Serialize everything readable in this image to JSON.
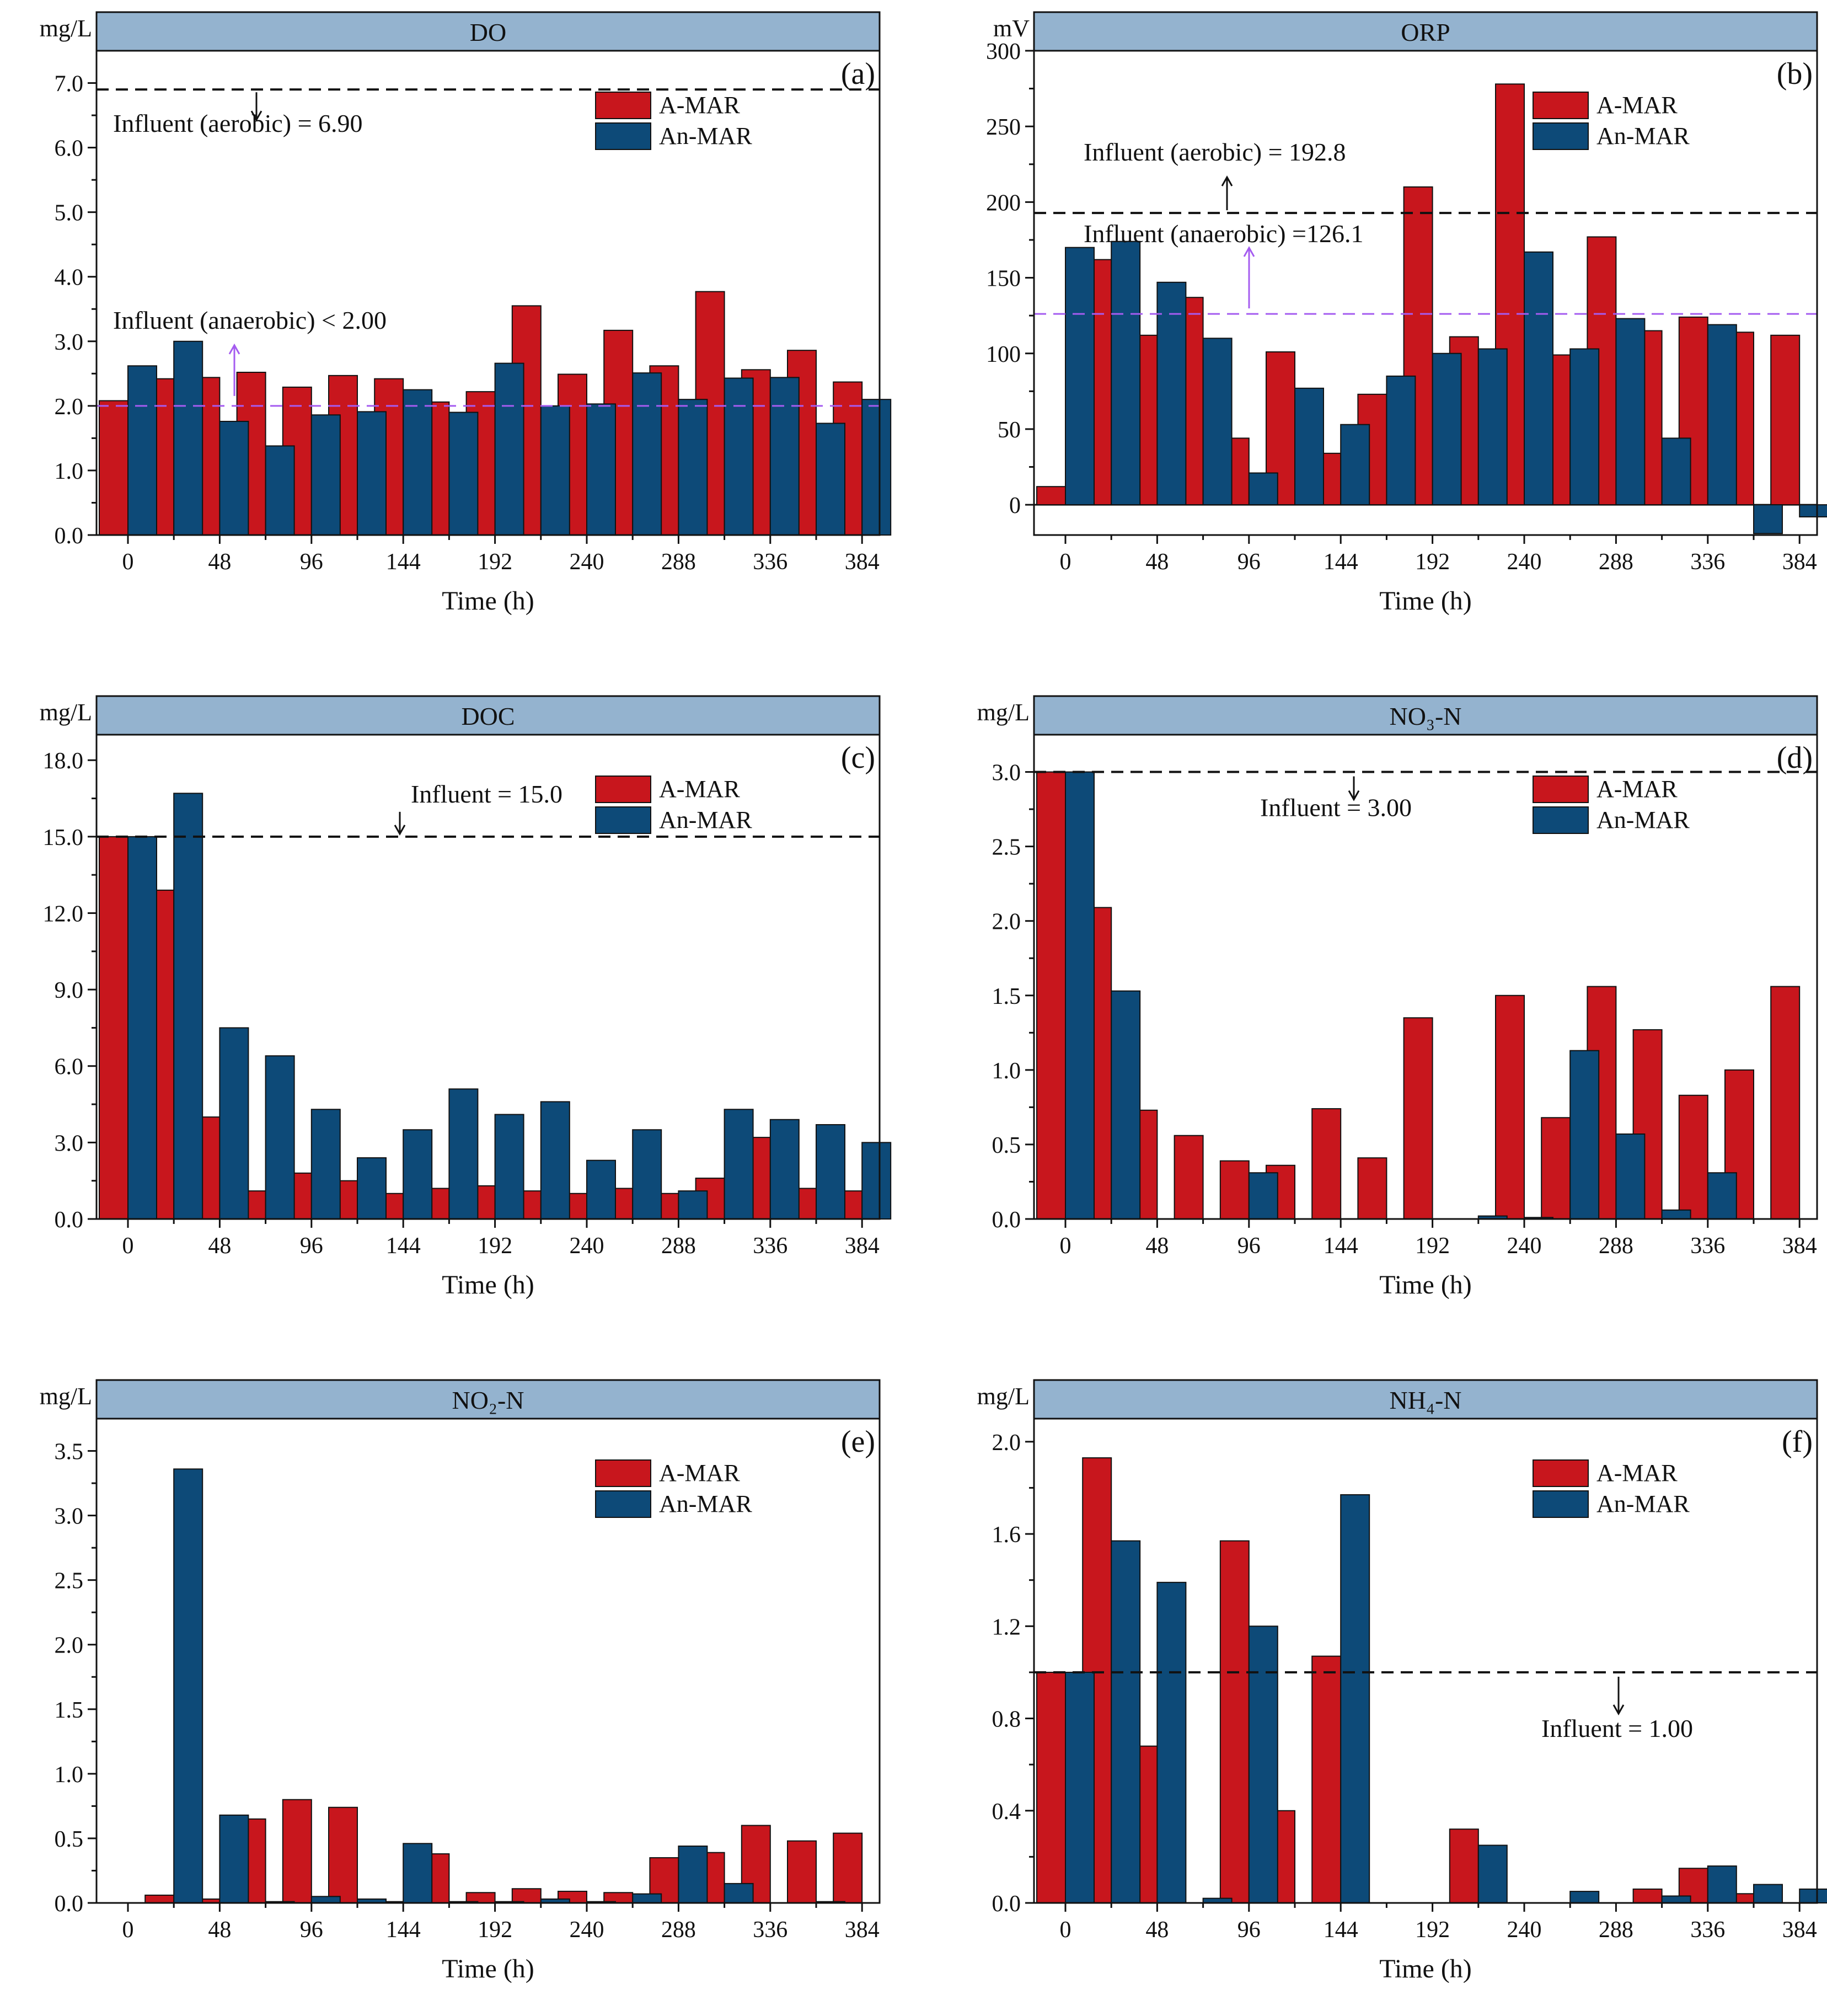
{
  "figure": {
    "time_label": "Time (h)",
    "legend_a": "A-MAR",
    "legend_b": "An-MAR",
    "color_a": "#c8161d",
    "color_b": "#0d4a78",
    "header_fill": "#94b3cf",
    "ref_black": "#111111",
    "ref_purple": "#a55cf0"
  },
  "chart_data": [
    {
      "id": "a",
      "type": "bar",
      "title": "DO",
      "letter": "(a)",
      "unit": "mg/L",
      "xlabel": "Time (h)",
      "x": [
        0,
        24,
        48,
        72,
        96,
        120,
        144,
        168,
        192,
        216,
        240,
        264,
        288,
        312,
        336,
        360,
        384
      ],
      "xticks": [
        "0",
        "48",
        "96",
        "144",
        "192",
        "240",
        "288",
        "336",
        "384"
      ],
      "yticks": [
        "0.0",
        "1.0",
        "2.0",
        "3.0",
        "4.0",
        "5.0",
        "6.0",
        "7.0"
      ],
      "ylim": [
        0,
        7.5
      ],
      "series": [
        {
          "name": "A-MAR",
          "values": [
            2.08,
            2.42,
            2.44,
            2.52,
            2.29,
            2.47,
            2.42,
            2.06,
            2.22,
            3.55,
            2.49,
            3.17,
            2.62,
            3.77,
            2.56,
            2.86,
            2.37
          ]
        },
        {
          "name": "An-MAR",
          "values": [
            2.62,
            3.0,
            1.76,
            1.38,
            1.86,
            1.91,
            2.25,
            1.9,
            2.66,
            2.0,
            2.03,
            2.51,
            2.1,
            2.43,
            2.44,
            1.73,
            2.1
          ]
        }
      ],
      "refs": [
        {
          "value": 6.9,
          "label": "Influent (aerobic) = 6.90",
          "color": "black"
        },
        {
          "value": 2.0,
          "label": "Influent (anaerobic) < 2.00",
          "color": "purple"
        }
      ]
    },
    {
      "id": "b",
      "type": "bar",
      "title": "ORP",
      "letter": "(b)",
      "unit": "mV",
      "xlabel": "Time (h)",
      "x": [
        0,
        24,
        48,
        72,
        96,
        120,
        144,
        168,
        192,
        216,
        240,
        264,
        288,
        312,
        336,
        360,
        384
      ],
      "xticks": [
        "0",
        "48",
        "96",
        "144",
        "192",
        "240",
        "288",
        "336",
        "384"
      ],
      "yticks": [
        "0",
        "50",
        "100",
        "150",
        "200",
        "250",
        "300"
      ],
      "ylim": [
        -20,
        300
      ],
      "series": [
        {
          "name": "A-MAR",
          "values": [
            12,
            162,
            112,
            137,
            44,
            101,
            34,
            73,
            210,
            111,
            278,
            99,
            177,
            115,
            124,
            114,
            112
          ]
        },
        {
          "name": "An-MAR",
          "values": [
            170,
            174,
            147,
            110,
            21,
            77,
            53,
            85,
            100,
            103,
            167,
            103,
            123,
            44,
            119,
            -19,
            -8
          ]
        }
      ],
      "refs": [
        {
          "value": 192.8,
          "label": "Influent (aerobic) = 192.8",
          "color": "black"
        },
        {
          "value": 126.1,
          "label": "Influent (anaerobic) =126.1",
          "color": "purple"
        }
      ]
    },
    {
      "id": "c",
      "type": "bar",
      "title": "DOC",
      "letter": "(c)",
      "unit": "mg/L",
      "xlabel": "Time (h)",
      "x": [
        0,
        24,
        48,
        72,
        96,
        120,
        144,
        168,
        192,
        216,
        240,
        264,
        288,
        312,
        336,
        360,
        384
      ],
      "xticks": [
        "0",
        "48",
        "96",
        "144",
        "192",
        "240",
        "288",
        "336",
        "384"
      ],
      "yticks": [
        "0.0",
        "3.0",
        "6.0",
        "9.0",
        "12.0",
        "15.0",
        "18.0"
      ],
      "ylim": [
        0,
        19
      ],
      "series": [
        {
          "name": "A-MAR",
          "values": [
            15.0,
            12.9,
            4.0,
            1.1,
            1.8,
            1.5,
            1.0,
            1.2,
            1.3,
            1.1,
            1.0,
            1.2,
            1.0,
            1.6,
            3.2,
            1.2,
            1.1
          ]
        },
        {
          "name": "An-MAR",
          "values": [
            15.0,
            16.7,
            7.5,
            6.4,
            4.3,
            2.4,
            3.5,
            5.1,
            4.1,
            4.6,
            2.3,
            3.5,
            1.1,
            4.3,
            3.9,
            3.7,
            3.0
          ]
        }
      ],
      "refs": [
        {
          "value": 15.0,
          "label": "Influent = 15.0",
          "color": "black"
        }
      ]
    },
    {
      "id": "d",
      "type": "bar",
      "title": "NO₃-N",
      "letter": "(d)",
      "unit": "mg/L",
      "xlabel": "Time (h)",
      "x": [
        0,
        24,
        48,
        72,
        96,
        120,
        144,
        168,
        192,
        216,
        240,
        264,
        288,
        312,
        336,
        360,
        384
      ],
      "xticks": [
        "0",
        "48",
        "96",
        "144",
        "192",
        "240",
        "288",
        "336",
        "384"
      ],
      "yticks": [
        "0.0",
        "0.5",
        "1.0",
        "1.5",
        "2.0",
        "2.5",
        "3.0"
      ],
      "ylim": [
        0,
        3.25
      ],
      "series": [
        {
          "name": "A-MAR",
          "values": [
            3.0,
            2.09,
            0.73,
            0.56,
            0.39,
            0.36,
            0.74,
            0.41,
            1.35,
            0.0,
            1.5,
            0.68,
            1.56,
            1.27,
            0.83,
            1.0,
            1.56
          ]
        },
        {
          "name": "An-MAR",
          "values": [
            3.0,
            1.53,
            0.0,
            0.0,
            0.31,
            0.0,
            0.0,
            0.0,
            0.0,
            0.02,
            0.01,
            1.13,
            0.57,
            0.06,
            0.31,
            0.0,
            0.0
          ]
        }
      ],
      "refs": [
        {
          "value": 3.0,
          "label": "Influent = 3.00",
          "color": "black"
        }
      ]
    },
    {
      "id": "e",
      "type": "bar",
      "title": "NO₂-N",
      "letter": "(e)",
      "unit": "mg/L",
      "xlabel": "Time (h)",
      "x": [
        0,
        24,
        48,
        72,
        96,
        120,
        144,
        168,
        192,
        216,
        240,
        264,
        288,
        312,
        336,
        360,
        384
      ],
      "xticks": [
        "0",
        "48",
        "96",
        "144",
        "192",
        "240",
        "288",
        "336",
        "384"
      ],
      "yticks": [
        "0.0",
        "0.5",
        "1.0",
        "1.5",
        "2.0",
        "2.5",
        "3.0",
        "3.5"
      ],
      "ylim": [
        0,
        3.75
      ],
      "series": [
        {
          "name": "A-MAR",
          "values": [
            0.0,
            0.06,
            0.03,
            0.65,
            0.8,
            0.74,
            0.01,
            0.38,
            0.08,
            0.11,
            0.09,
            0.08,
            0.35,
            0.39,
            0.6,
            0.48,
            0.54
          ]
        },
        {
          "name": "An-MAR",
          "values": [
            0.0,
            3.36,
            0.68,
            0.01,
            0.05,
            0.03,
            0.46,
            0.01,
            0.01,
            0.03,
            0.01,
            0.07,
            0.44,
            0.15,
            0.0,
            0.01,
            0.0
          ]
        }
      ],
      "refs": []
    },
    {
      "id": "f",
      "type": "bar",
      "title": "NH₄-N",
      "letter": "(f)",
      "unit": "mg/L",
      "xlabel": "Time (h)",
      "x": [
        0,
        24,
        48,
        72,
        96,
        120,
        144,
        168,
        192,
        216,
        240,
        264,
        288,
        312,
        336,
        360,
        384
      ],
      "xticks": [
        "0",
        "48",
        "96",
        "144",
        "192",
        "240",
        "288",
        "336",
        "384"
      ],
      "yticks": [
        "0.0",
        "0.4",
        "0.8",
        "1.2",
        "1.6",
        "2.0"
      ],
      "ylim": [
        0,
        2.1
      ],
      "series": [
        {
          "name": "A-MAR",
          "values": [
            1.0,
            1.93,
            0.68,
            0.0,
            1.57,
            0.4,
            1.07,
            0.0,
            0.0,
            0.32,
            0.0,
            0.0,
            0.0,
            0.06,
            0.15,
            0.04,
            0.0
          ]
        },
        {
          "name": "An-MAR",
          "values": [
            1.0,
            1.57,
            1.39,
            0.02,
            1.2,
            0.0,
            1.77,
            0.0,
            0.0,
            0.25,
            0.0,
            0.05,
            0.0,
            0.03,
            0.16,
            0.08,
            0.06
          ]
        }
      ],
      "refs": [
        {
          "value": 1.0,
          "label": "Influent = 1.00",
          "color": "black"
        }
      ]
    }
  ]
}
